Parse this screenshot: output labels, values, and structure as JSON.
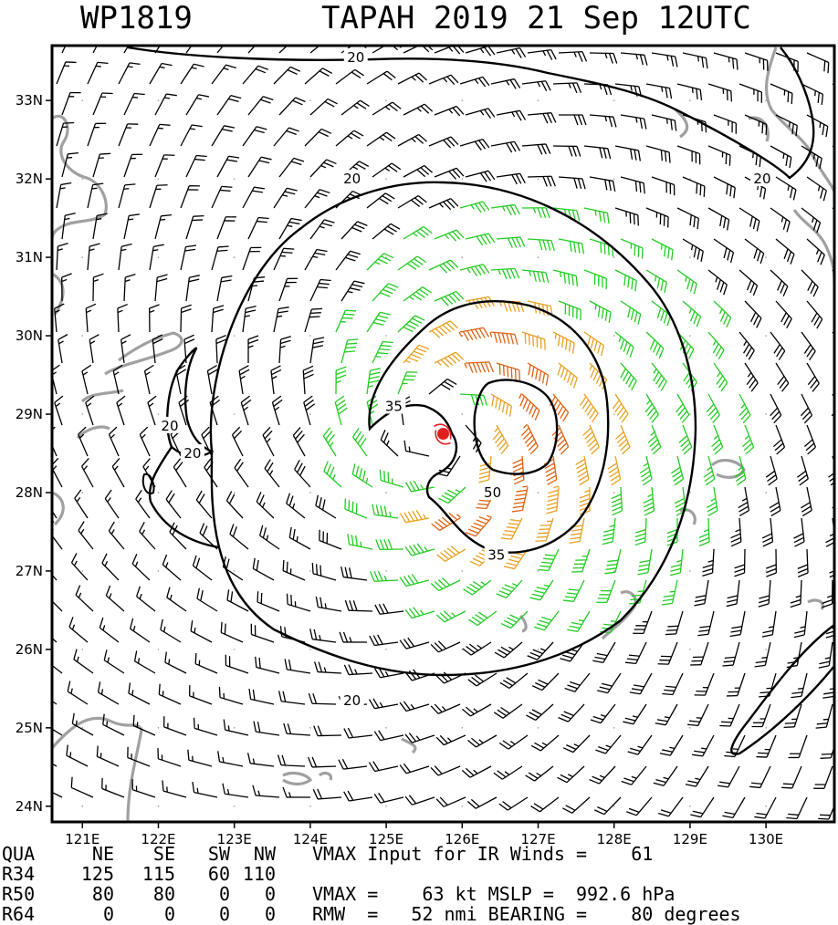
{
  "header": {
    "storm_id": "WP1819",
    "storm_title": "TAPAH 2019 21 Sep 12UTC"
  },
  "chart_data": {
    "type": "wind-analysis-map",
    "lon_range": [
      120.6,
      130.9
    ],
    "lat_range": [
      23.8,
      33.7
    ],
    "lon_ticks": [
      "121E",
      "122E",
      "123E",
      "124E",
      "125E",
      "126E",
      "127E",
      "128E",
      "129E",
      "130E"
    ],
    "lat_ticks": [
      "24N",
      "25N",
      "26N",
      "27N",
      "28N",
      "29N",
      "30N",
      "31N",
      "32N",
      "33N"
    ],
    "storm_center": {
      "lon": 125.75,
      "lat": 28.75
    },
    "wind_barb_colors": {
      "below_34kt": "#000000",
      "34_49kt": "#22cc22",
      "50_63kt": "#e8a020",
      "64kt_plus": "#e06010"
    },
    "contours": [
      {
        "label": "20",
        "color": "#000000"
      },
      {
        "label": "35",
        "color": "#000000"
      },
      {
        "label": "50",
        "color": "#000000"
      }
    ],
    "contour_labels": [
      {
        "text": "20",
        "lon": 124.55,
        "lat": 32.0
      },
      {
        "text": "20",
        "lon": 124.55,
        "lat": 25.35
      },
      {
        "text": "20",
        "lon": 122.15,
        "lat": 28.85
      },
      {
        "text": "20",
        "lon": 122.45,
        "lat": 28.5
      },
      {
        "text": "20",
        "lon": 124.6,
        "lat": 33.55
      },
      {
        "text": "20",
        "lon": 129.95,
        "lat": 32.0
      },
      {
        "text": "35",
        "lon": 125.1,
        "lat": 29.1
      },
      {
        "text": "35",
        "lon": 126.45,
        "lat": 27.2
      },
      {
        "text": "50",
        "lon": 126.4,
        "lat": 28.0
      }
    ],
    "landmass_color": "#a0a0a0"
  },
  "table": {
    "rows": [
      [
        "QUA",
        "NE",
        "SE",
        "SW",
        "NW"
      ],
      [
        "R34",
        "125",
        "115",
        "60",
        "110"
      ],
      [
        "R50",
        "80",
        "80",
        "0",
        "0"
      ],
      [
        "R64",
        "0",
        "0",
        "0",
        "0"
      ]
    ],
    "info_lines": [
      "VMAX Input for IR Winds =    61",
      "",
      "VMAX =    63 kt MSLP =  992.6 hPa",
      "RMW  =   52 nmi BEARING =    80 degrees"
    ]
  }
}
